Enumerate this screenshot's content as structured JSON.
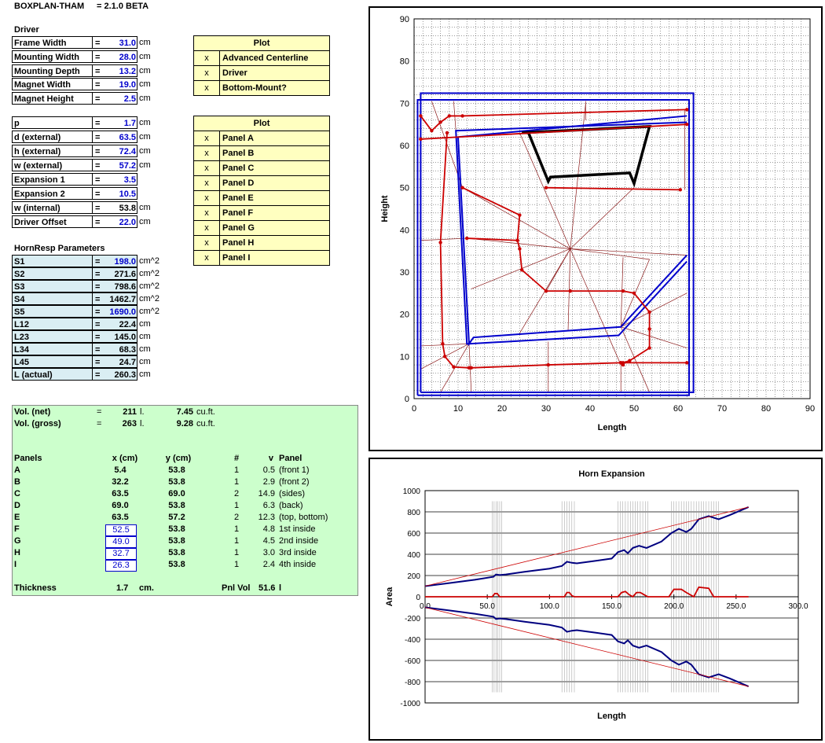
{
  "header": {
    "app": "BOXPLAN-THAM",
    "version": "= 2.1.0 BETA"
  },
  "driver": {
    "title": "Driver",
    "rows": [
      {
        "label": "Frame Width",
        "eq": "=",
        "value": "31.0",
        "unit": "cm",
        "blue": true
      },
      {
        "label": "Mounting Width",
        "eq": "=",
        "value": "28.0",
        "unit": "cm",
        "blue": true
      },
      {
        "label": "Mounting Depth",
        "eq": "=",
        "value": "13.2",
        "unit": "cm",
        "blue": true
      },
      {
        "label": "Magnet Width",
        "eq": "=",
        "value": "19.0",
        "unit": "cm",
        "blue": true
      },
      {
        "label": "Magnet Height",
        "eq": "=",
        "value": "2.5",
        "unit": "cm",
        "blue": true
      }
    ]
  },
  "plot1": {
    "title": "Plot",
    "items": [
      {
        "mark": "x",
        "label": "Advanced Centerline"
      },
      {
        "mark": "x",
        "label": "Driver"
      },
      {
        "mark": "x",
        "label": "Bottom-Mount?"
      }
    ]
  },
  "params": {
    "rows": [
      {
        "label": "p",
        "eq": "=",
        "value": "1.7",
        "unit": "cm",
        "blue": true
      },
      {
        "label": "d (external)",
        "eq": "=",
        "value": "63.5",
        "unit": "cm",
        "blue": true
      },
      {
        "label": "h (external)",
        "eq": "=",
        "value": "72.4",
        "unit": "cm",
        "blue": true
      },
      {
        "label": "w (external)",
        "eq": "=",
        "value": "57.2",
        "unit": "cm",
        "blue": true
      },
      {
        "label": "Expansion 1",
        "eq": "=",
        "value": "3.5",
        "unit": "",
        "blue": true
      },
      {
        "label": "Expansion 2",
        "eq": "=",
        "value": "10.5",
        "unit": "",
        "blue": true
      },
      {
        "label": "w (internal)",
        "eq": "=",
        "value": "53.8",
        "unit": "cm",
        "blue": false
      },
      {
        "label": "Driver Offset",
        "eq": "=",
        "value": "22.0",
        "unit": "cm",
        "blue": true
      }
    ]
  },
  "plot2": {
    "title": "Plot",
    "items": [
      {
        "mark": "x",
        "label": "Panel A"
      },
      {
        "mark": "x",
        "label": "Panel B"
      },
      {
        "mark": "x",
        "label": "Panel C"
      },
      {
        "mark": "x",
        "label": "Panel D"
      },
      {
        "mark": "x",
        "label": "Panel E"
      },
      {
        "mark": "x",
        "label": "Panel F"
      },
      {
        "mark": "x",
        "label": "Panel G"
      },
      {
        "mark": "x",
        "label": "Panel H"
      },
      {
        "mark": "x",
        "label": "Panel I"
      }
    ]
  },
  "hornresp": {
    "title": "HornResp Parameters",
    "rows": [
      {
        "label": "S1",
        "eq": "=",
        "value": "198.0",
        "unit": "cm^2",
        "blue": true
      },
      {
        "label": "S2",
        "eq": "=",
        "value": "271.6",
        "unit": "cm^2",
        "blue": false
      },
      {
        "label": "S3",
        "eq": "=",
        "value": "798.6",
        "unit": "cm^2",
        "blue": false
      },
      {
        "label": "S4",
        "eq": "=",
        "value": "1462.7",
        "unit": "cm^2",
        "blue": false
      },
      {
        "label": "S5",
        "eq": "=",
        "value": "1690.0",
        "unit": "cm^2",
        "blue": true
      },
      {
        "label": "L12",
        "eq": "=",
        "value": "22.4",
        "unit": "cm",
        "blue": false
      },
      {
        "label": "L23",
        "eq": "=",
        "value": "145.0",
        "unit": "cm",
        "blue": false
      },
      {
        "label": "L34",
        "eq": "=",
        "value": "68.3",
        "unit": "cm",
        "blue": false
      },
      {
        "label": "L45",
        "eq": "=",
        "value": "24.7",
        "unit": "cm",
        "blue": false
      },
      {
        "label": "L (actual)",
        "eq": "=",
        "value": "260.3",
        "unit": "cm",
        "blue": false
      }
    ]
  },
  "volume": {
    "net": {
      "label": "Vol. (net)",
      "eq": "=",
      "l": "211",
      "lunit": "l.",
      "cuft": "7.45",
      "cuunit": "cu.ft."
    },
    "gross": {
      "label": "Vol. (gross)",
      "eq": "=",
      "l": "263",
      "lunit": "l.",
      "cuft": "9.28",
      "cuunit": "cu.ft."
    }
  },
  "panels": {
    "headers": {
      "name": "Panels",
      "x": "x (cm)",
      "y": "y (cm)",
      "n": "#",
      "v": "v",
      "panel": "Panel"
    },
    "rows": [
      {
        "name": "A",
        "x": "5.4",
        "y": "53.8",
        "n": "1",
        "v": "0.5",
        "desc": "(front 1)",
        "boxed": false
      },
      {
        "name": "B",
        "x": "32.2",
        "y": "53.8",
        "n": "1",
        "v": "2.9",
        "desc": "(front 2)",
        "boxed": false
      },
      {
        "name": "C",
        "x": "63.5",
        "y": "69.0",
        "n": "2",
        "v": "14.9",
        "desc": "(sides)",
        "boxed": false
      },
      {
        "name": "D",
        "x": "69.0",
        "y": "53.8",
        "n": "1",
        "v": "6.3",
        "desc": "(back)",
        "boxed": false
      },
      {
        "name": "E",
        "x": "63.5",
        "y": "57.2",
        "n": "2",
        "v": "12.3",
        "desc": "(top, bottom)",
        "boxed": false
      },
      {
        "name": "F",
        "x": "52.5",
        "y": "53.8",
        "n": "1",
        "v": "4.8",
        "desc": "1st inside",
        "boxed": true
      },
      {
        "name": "G",
        "x": "49.0",
        "y": "53.8",
        "n": "1",
        "v": "4.5",
        "desc": "2nd inside",
        "boxed": true
      },
      {
        "name": "H",
        "x": "32.7",
        "y": "53.8",
        "n": "1",
        "v": "3.0",
        "desc": "3rd inside",
        "boxed": true
      },
      {
        "name": "I",
        "x": "26.3",
        "y": "53.8",
        "n": "1",
        "v": "2.4",
        "desc": "4th inside",
        "boxed": true
      }
    ],
    "thickness_label": "Thickness",
    "thickness": "1.7",
    "thickness_unit": "cm.",
    "pnlvol_label": "Pnl Vol",
    "pnlvol": "51.6",
    "pnlvol_unit": "l"
  },
  "chart_data": [
    {
      "type": "line",
      "title": "",
      "xlabel": "Length",
      "ylabel": "Height",
      "xlim": [
        0,
        90
      ],
      "ylim": [
        0,
        90
      ],
      "xticks": [
        "0",
        "10",
        "20",
        "30",
        "40",
        "50",
        "60",
        "70",
        "80",
        "90"
      ],
      "yticks": [
        "0",
        "10",
        "20",
        "30",
        "40",
        "50",
        "60",
        "70",
        "80",
        "90"
      ],
      "grid": true,
      "series": [
        {
          "color": "#0000cc",
          "x": [
            1.5,
            63.5,
            63.5,
            1.5,
            1.5
          ],
          "y": [
            1.5,
            1.5,
            72.4,
            72.4,
            1.5
          ]
        },
        {
          "color": "#0000cc",
          "x": [
            0.8,
            62.5,
            62.5,
            0.8,
            0.8
          ],
          "y": [
            0.8,
            0.8,
            70.8,
            70.8,
            0.8
          ]
        },
        {
          "color": "#0000cc",
          "x": [
            62,
            10,
            12.5,
            13.5,
            47,
            62
          ],
          "y": [
            67,
            62,
            13,
            14.5,
            17,
            34
          ]
        },
        {
          "color": "#0000cc",
          "x": [
            62,
            9.5,
            12,
            12.5,
            46.5,
            62
          ],
          "y": [
            65.5,
            63.5,
            13,
            13,
            15,
            32.5
          ]
        },
        {
          "color": "#000000",
          "x": [
            24.5,
            26,
            30.5,
            31,
            49,
            50,
            53.5,
            24.5
          ],
          "y": [
            63,
            63,
            51.5,
            52.5,
            53.5,
            51,
            64.5,
            63
          ]
        },
        {
          "color": "#cc0000",
          "x": [
            1.5,
            4,
            6,
            8,
            11,
            62
          ],
          "y": [
            67,
            63.5,
            65.5,
            67,
            67,
            68.5
          ]
        },
        {
          "color": "#cc0000",
          "x": [
            1.5,
            62
          ],
          "y": [
            61.5,
            65
          ]
        },
        {
          "color": "#cc0000",
          "x": [
            7.5,
            6,
            6.5,
            7,
            9,
            12.5,
            13,
            30.5,
            47,
            47,
            62
          ],
          "y": [
            63,
            37,
            13,
            10,
            7.5,
            7.3,
            7.3,
            8,
            8.5,
            8.5,
            8.5
          ]
        },
        {
          "color": "#cc0000",
          "x": [
            11,
            24,
            23.5,
            24,
            24.5,
            30,
            35.5,
            47.5,
            50,
            53.5,
            53.5,
            53.5,
            49,
            47.5,
            47.5
          ],
          "y": [
            50,
            43.5,
            37.5,
            35.5,
            30.5,
            25.5,
            25.5,
            25.5,
            25,
            20.5,
            16.5,
            12,
            9,
            8.5,
            8
          ]
        },
        {
          "color": "#cc0000",
          "x": [
            30,
            60.5
          ],
          "y": [
            50,
            49.5
          ]
        },
        {
          "color": "#cc0000",
          "x": [
            12,
            23.5
          ],
          "y": [
            38,
            37.5
          ]
        }
      ]
    },
    {
      "type": "line",
      "title": "Horn Expansion",
      "xlabel": "Length",
      "ylabel": "Area",
      "xlim": [
        0,
        300
      ],
      "ylim": [
        -1000,
        1000
      ],
      "xticks": [
        "0.0",
        "50.0",
        "100.0",
        "150.0",
        "200.0",
        "250.0",
        "300.0"
      ],
      "yticks": [
        "1000",
        "800",
        "600",
        "400",
        "200",
        "0",
        "-200",
        "-400",
        "-600",
        "-800",
        "-1000"
      ],
      "grid": true,
      "series": [
        {
          "color": "#000080",
          "x": [
            0,
            20,
            40,
            55,
            57,
            60,
            65,
            80,
            100,
            110,
            114,
            118,
            122,
            135,
            150,
            155,
            160,
            163,
            167,
            172,
            178,
            190,
            198,
            204,
            210,
            214,
            220,
            228,
            236,
            245,
            260
          ],
          "y": [
            100,
            130,
            160,
            188,
            210,
            205,
            210,
            235,
            265,
            290,
            330,
            320,
            315,
            335,
            360,
            420,
            440,
            410,
            460,
            480,
            460,
            520,
            600,
            640,
            610,
            640,
            730,
            760,
            730,
            770,
            845
          ]
        },
        {
          "color": "#cc0000",
          "x": [
            0,
            260
          ],
          "y": [
            100,
            845
          ]
        },
        {
          "color": "#000080",
          "x": [
            0,
            20,
            40,
            55,
            57,
            60,
            65,
            80,
            100,
            110,
            114,
            118,
            122,
            135,
            150,
            155,
            160,
            163,
            167,
            172,
            178,
            190,
            198,
            204,
            210,
            214,
            220,
            228,
            236,
            245,
            260
          ],
          "y": [
            -100,
            -130,
            -160,
            -188,
            -210,
            -205,
            -210,
            -235,
            -265,
            -290,
            -330,
            -320,
            -315,
            -335,
            -360,
            -420,
            -440,
            -410,
            -460,
            -480,
            -460,
            -520,
            -600,
            -640,
            -610,
            -640,
            -730,
            -760,
            -730,
            -770,
            -845
          ]
        },
        {
          "color": "#cc0000",
          "x": [
            0,
            260
          ],
          "y": [
            -100,
            -845
          ]
        },
        {
          "color": "#cc0000",
          "x": [
            0,
            54,
            56,
            58,
            60,
            112,
            114,
            116,
            118,
            120,
            155,
            158,
            161,
            164,
            167,
            170,
            173,
            176,
            179,
            196,
            200,
            206,
            210,
            216,
            220,
            228,
            232,
            260
          ],
          "y": [
            0,
            0,
            30,
            30,
            0,
            0,
            40,
            40,
            10,
            0,
            0,
            40,
            50,
            20,
            0,
            40,
            40,
            20,
            0,
            0,
            70,
            70,
            40,
            0,
            90,
            80,
            0,
            0
          ]
        }
      ]
    }
  ]
}
